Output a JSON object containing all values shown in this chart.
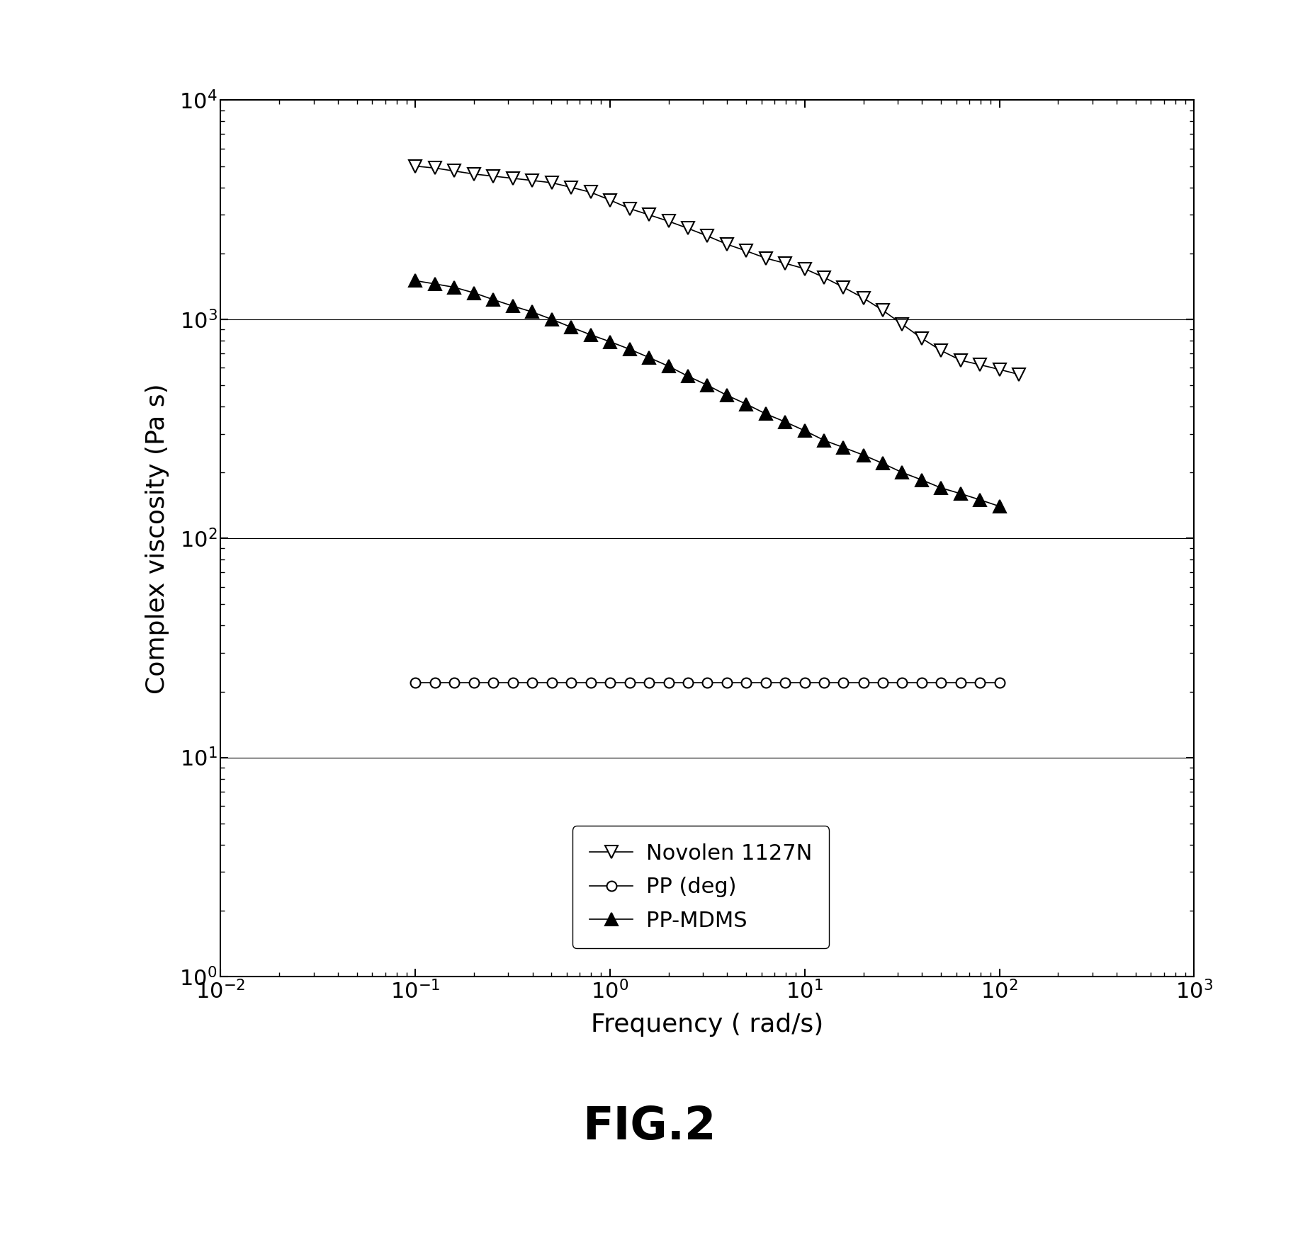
{
  "xlabel": "Frequency ( rad/s)",
  "ylabel": "Complex viscosity (Pa s)",
  "fig_label": "FIG.2",
  "xlim": [
    0.01,
    1000
  ],
  "ylim": [
    1.0,
    10000
  ],
  "novolen_x": [
    0.1,
    0.126,
    0.158,
    0.2,
    0.251,
    0.316,
    0.398,
    0.501,
    0.631,
    0.794,
    1.0,
    1.26,
    1.58,
    2.0,
    2.51,
    3.16,
    3.98,
    5.01,
    6.31,
    7.94,
    10.0,
    12.6,
    15.8,
    20.0,
    25.1,
    31.6,
    39.8,
    50.1,
    63.1,
    79.4,
    100.0,
    125.9
  ],
  "novolen_y": [
    5000,
    4900,
    4750,
    4600,
    4500,
    4400,
    4300,
    4200,
    4000,
    3800,
    3500,
    3200,
    3000,
    2800,
    2600,
    2400,
    2200,
    2050,
    1900,
    1800,
    1700,
    1550,
    1400,
    1250,
    1100,
    950,
    820,
    720,
    650,
    620,
    590,
    560
  ],
  "pp_deg_x": [
    0.1,
    0.126,
    0.158,
    0.2,
    0.251,
    0.316,
    0.398,
    0.501,
    0.631,
    0.794,
    1.0,
    1.26,
    1.58,
    2.0,
    2.51,
    3.16,
    3.98,
    5.01,
    6.31,
    7.94,
    10.0,
    12.6,
    15.8,
    20.0,
    25.1,
    31.6,
    39.8,
    50.1,
    63.1,
    79.4,
    100.0
  ],
  "pp_deg_y": [
    22,
    22,
    22,
    22,
    22,
    22,
    22,
    22,
    22,
    22,
    22,
    22,
    22,
    22,
    22,
    22,
    22,
    22,
    22,
    22,
    22,
    22,
    22,
    22,
    22,
    22,
    22,
    22,
    22,
    22,
    22
  ],
  "ppmdms_x": [
    0.1,
    0.126,
    0.158,
    0.2,
    0.251,
    0.316,
    0.398,
    0.501,
    0.631,
    0.794,
    1.0,
    1.26,
    1.58,
    2.0,
    2.51,
    3.16,
    3.98,
    5.01,
    6.31,
    7.94,
    10.0,
    12.6,
    15.8,
    20.0,
    25.1,
    31.6,
    39.8,
    50.1,
    63.1,
    79.4,
    100.0
  ],
  "ppmdms_y": [
    1500,
    1450,
    1400,
    1320,
    1230,
    1150,
    1080,
    1000,
    920,
    850,
    790,
    730,
    670,
    610,
    550,
    500,
    450,
    410,
    370,
    340,
    310,
    280,
    260,
    240,
    220,
    200,
    185,
    170,
    160,
    150,
    140
  ],
  "background_color": "#ffffff",
  "plot_bg_color": "#ffffff",
  "marker_size_tri": 13,
  "marker_size_circ": 10,
  "linewidth": 1.2,
  "legend_fontsize": 22,
  "axis_fontsize": 26,
  "tick_fontsize": 22,
  "fig_label_fontsize": 46
}
